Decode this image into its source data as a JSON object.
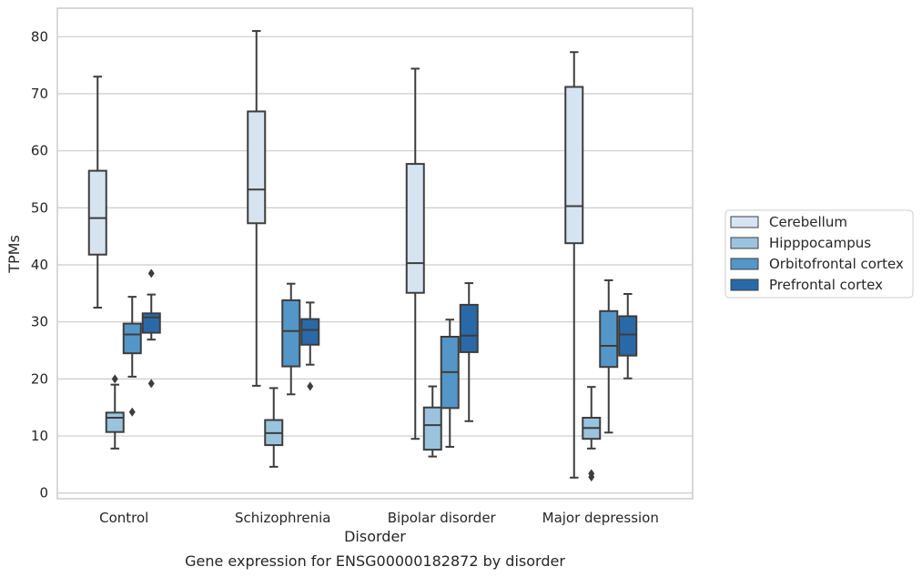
{
  "chart_data": {
    "type": "box",
    "title": "Gene expression for ENSG00000182872 by disorder",
    "xlabel": "Disorder",
    "ylabel": "TPMs",
    "ylim": [
      -1,
      85
    ],
    "yticks": [
      0,
      10,
      20,
      30,
      40,
      50,
      60,
      70,
      80
    ],
    "grid": true,
    "legend_position": "right",
    "categories": [
      "Control",
      "Schizophrenia",
      "Bipolar disorder",
      "Major depression"
    ],
    "series": [
      {
        "name": "Cerebellum",
        "color": "#d6e4f2",
        "boxes": [
          {
            "whislo": 32.5,
            "q1": 41.8,
            "med": 48.2,
            "q3": 56.5,
            "whishi": 73.0,
            "fliers": []
          },
          {
            "whislo": 18.8,
            "q1": 47.3,
            "med": 53.2,
            "q3": 66.9,
            "whishi": 81.0,
            "fliers": []
          },
          {
            "whislo": 9.5,
            "q1": 35.1,
            "med": 40.3,
            "q3": 57.7,
            "whishi": 74.4,
            "fliers": []
          },
          {
            "whislo": 2.7,
            "q1": 43.8,
            "med": 50.3,
            "q3": 71.2,
            "whishi": 77.3,
            "fliers": []
          }
        ]
      },
      {
        "name": "Hipppocampus",
        "color": "#9ac3de",
        "boxes": [
          {
            "whislo": 7.8,
            "q1": 10.7,
            "med": 13.2,
            "q3": 14.1,
            "whishi": 19.0,
            "fliers": [
              20.0
            ]
          },
          {
            "whislo": 4.6,
            "q1": 8.4,
            "med": 10.5,
            "q3": 12.8,
            "whishi": 18.4,
            "fliers": []
          },
          {
            "whislo": 6.4,
            "q1": 7.6,
            "med": 11.9,
            "q3": 15.0,
            "whishi": 18.7,
            "fliers": []
          },
          {
            "whislo": 7.8,
            "q1": 9.5,
            "med": 11.4,
            "q3": 13.2,
            "whishi": 18.6,
            "fliers": [
              3.4,
              2.8
            ]
          }
        ]
      },
      {
        "name": "Orbitofrontal cortex",
        "color": "#5496c7",
        "boxes": [
          {
            "whislo": 20.4,
            "q1": 24.5,
            "med": 27.8,
            "q3": 29.7,
            "whishi": 34.4,
            "fliers": [
              14.2
            ]
          },
          {
            "whislo": 17.3,
            "q1": 22.2,
            "med": 28.4,
            "q3": 33.8,
            "whishi": 36.7,
            "fliers": []
          },
          {
            "whislo": 8.1,
            "q1": 14.9,
            "med": 21.2,
            "q3": 27.4,
            "whishi": 30.4,
            "fliers": []
          },
          {
            "whislo": 10.6,
            "q1": 22.1,
            "med": 25.8,
            "q3": 31.9,
            "whishi": 37.3,
            "fliers": []
          }
        ]
      },
      {
        "name": "Prefrontal cortex",
        "color": "#2a69a8",
        "boxes": [
          {
            "whislo": 26.9,
            "q1": 28.1,
            "med": 30.8,
            "q3": 31.5,
            "whishi": 34.8,
            "fliers": [
              38.5,
              19.2
            ]
          },
          {
            "whislo": 22.5,
            "q1": 26.0,
            "med": 28.6,
            "q3": 30.5,
            "whishi": 33.4,
            "fliers": [
              18.7
            ]
          },
          {
            "whislo": 12.6,
            "q1": 24.7,
            "med": 27.6,
            "q3": 33.0,
            "whishi": 36.8,
            "fliers": []
          },
          {
            "whislo": 20.1,
            "q1": 24.1,
            "med": 27.8,
            "q3": 31.0,
            "whishi": 34.9,
            "fliers": []
          }
        ]
      }
    ]
  }
}
